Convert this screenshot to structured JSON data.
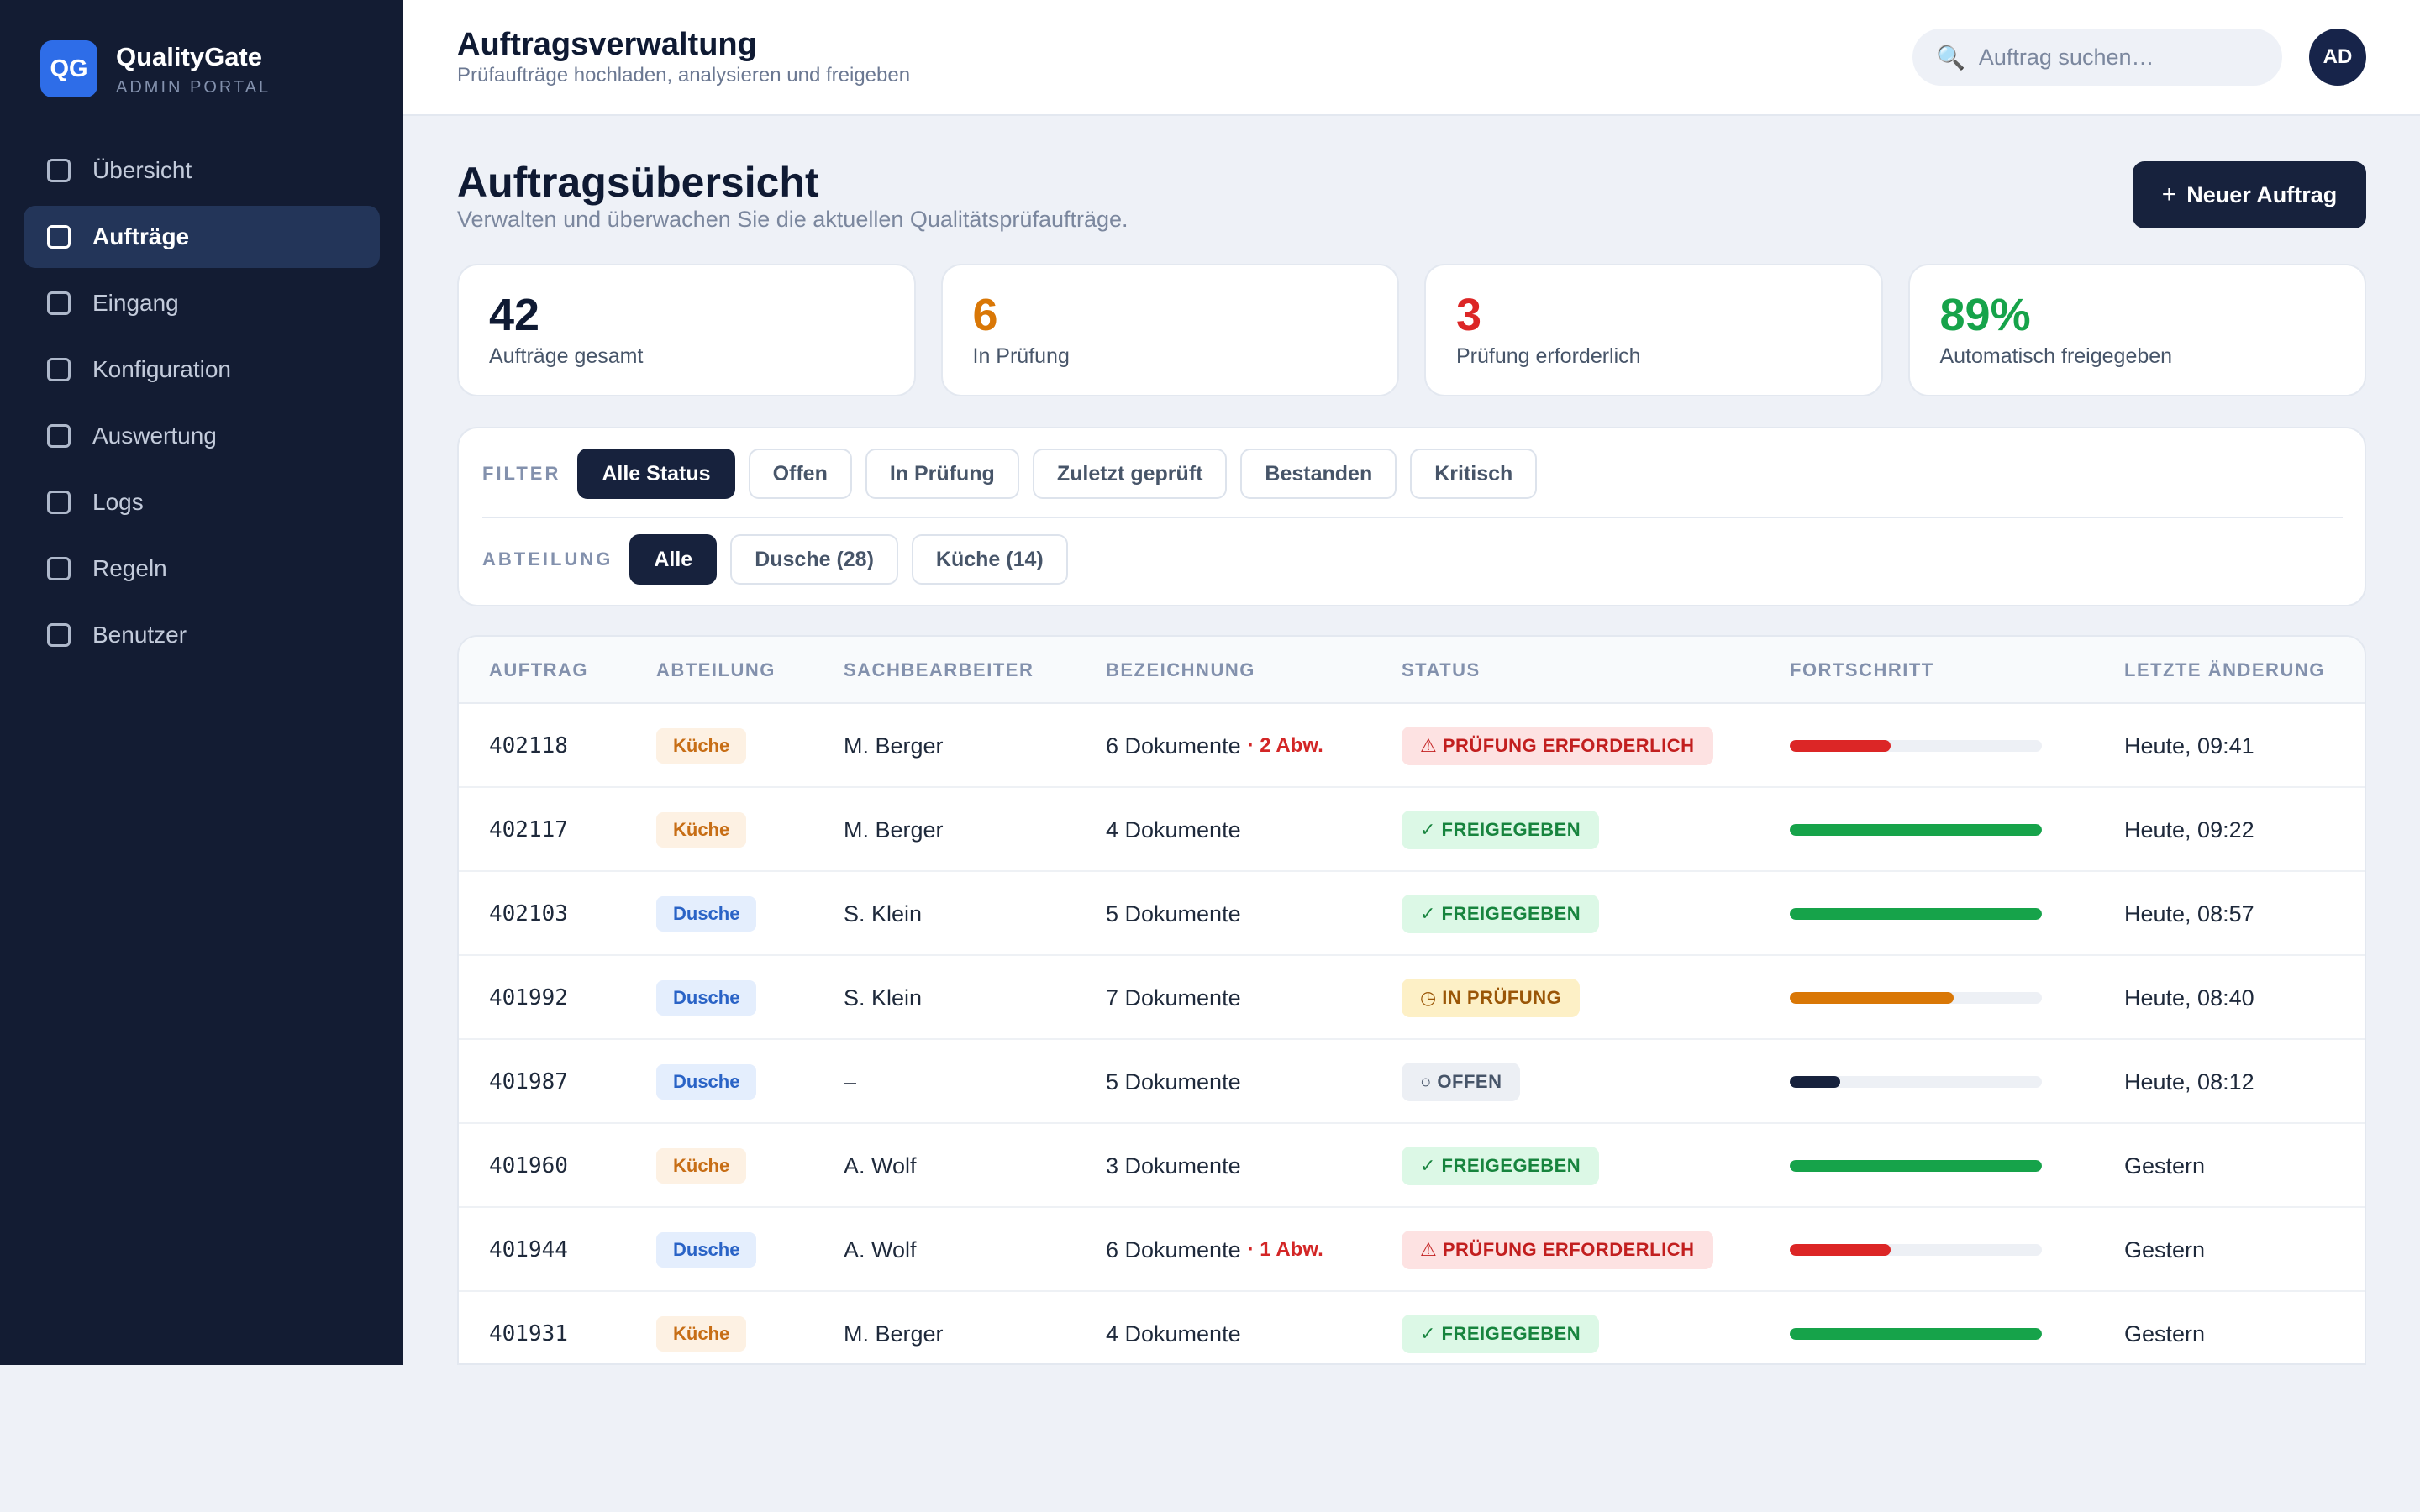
{
  "brand": {
    "logo": "QG",
    "name": "QualityGate",
    "subtitle": "ADMIN PORTAL"
  },
  "sidebar": {
    "items": [
      {
        "label": "Übersicht",
        "key": "uebersicht",
        "active": false
      },
      {
        "label": "Aufträge",
        "key": "auftraege",
        "active": true
      },
      {
        "label": "Eingang",
        "key": "eingang",
        "active": false
      },
      {
        "label": "Konfiguration",
        "key": "konfiguration",
        "active": false
      },
      {
        "label": "Auswertung",
        "key": "auswertung",
        "active": false
      },
      {
        "label": "Logs",
        "key": "logs",
        "active": false
      },
      {
        "label": "Regeln",
        "key": "regeln",
        "active": false
      },
      {
        "label": "Benutzer",
        "key": "benutzer",
        "active": false
      }
    ]
  },
  "header": {
    "title": "Auftragsverwaltung",
    "subtitle": "Prüfaufträge hochladen, analysieren und freigeben",
    "search_placeholder": "Auftrag suchen…",
    "search_icon": "🔍",
    "avatar": "AD"
  },
  "main": {
    "title": "Auftragsübersicht",
    "subtitle": "Verwalten und überwachen Sie die aktuellen Qualitätsprüfaufträge.",
    "new_button": {
      "icon": "+",
      "label": "Neuer Auftrag"
    }
  },
  "stats": [
    {
      "value": "42",
      "label": "Aufträge gesamt",
      "color": "#0f1a33"
    },
    {
      "value": "6",
      "label": "In Prüfung",
      "color": "#d97706"
    },
    {
      "value": "3",
      "label": "Prüfung erforderlich",
      "color": "#dc2626"
    },
    {
      "value": "89%",
      "label": "Automatisch freigegeben",
      "color": "#16a34a"
    }
  ],
  "filters": {
    "status_label": "FILTER",
    "status_options": [
      {
        "label": "Alle Status",
        "active": true
      },
      {
        "label": "Offen",
        "active": false
      },
      {
        "label": "In Prüfung",
        "active": false
      },
      {
        "label": "Zuletzt geprüft",
        "active": false
      },
      {
        "label": "Bestanden",
        "active": false
      },
      {
        "label": "Kritisch",
        "active": false
      }
    ],
    "dept_label": "ABTEILUNG",
    "dept_options": [
      {
        "label": "Alle",
        "active": true
      },
      {
        "label": "Dusche (28)",
        "active": false
      },
      {
        "label": "Küche (14)",
        "active": false
      }
    ]
  },
  "table": {
    "columns": [
      "AUFTRAG",
      "ABTEILUNG",
      "SACHBEARBEITER",
      "BEZEICHNUNG",
      "STATUS",
      "FORTSCHRITT",
      "LETZTE ÄNDERUNG"
    ],
    "rows": [
      {
        "auftrag": "402118",
        "abteilung": "Küche",
        "dept_class": "kueche",
        "bearbeiter": "M. Berger",
        "bezeichnung": "6 Dokumente",
        "abw": "· 2 Abw.",
        "status": "⚠ PRÜFUNG ERFORDERLICH",
        "status_class": "pruefung_erforderlich",
        "progress": 0.4,
        "progress_color": "#dc2626",
        "geaendert": "Heute, 09:41"
      },
      {
        "auftrag": "402117",
        "abteilung": "Küche",
        "dept_class": "kueche",
        "bearbeiter": "M. Berger",
        "bezeichnung": "4 Dokumente",
        "abw": "",
        "status": "✓ FREIGEGEBEN",
        "status_class": "freigegeben",
        "progress": 1.0,
        "progress_color": "#16a34a",
        "geaendert": "Heute, 09:22"
      },
      {
        "auftrag": "402103",
        "abteilung": "Dusche",
        "dept_class": "dusche",
        "bearbeiter": "S. Klein",
        "bezeichnung": "5 Dokumente",
        "abw": "",
        "status": "✓ FREIGEGEBEN",
        "status_class": "freigegeben",
        "progress": 1.0,
        "progress_color": "#16a34a",
        "geaendert": "Heute, 08:57"
      },
      {
        "auftrag": "401992",
        "abteilung": "Dusche",
        "dept_class": "dusche",
        "bearbeiter": "S. Klein",
        "bezeichnung": "7 Dokumente",
        "abw": "",
        "status": "◷ IN PRÜFUNG",
        "status_class": "in_pruefung",
        "progress": 0.65,
        "progress_color": "#d97706",
        "geaendert": "Heute, 08:40"
      },
      {
        "auftrag": "401987",
        "abteilung": "Dusche",
        "dept_class": "dusche",
        "bearbeiter": "–",
        "bezeichnung": "5 Dokumente",
        "abw": "",
        "status": "○ OFFEN",
        "status_class": "offen",
        "progress": 0.2,
        "progress_color": "#17223d",
        "geaendert": "Heute, 08:12"
      },
      {
        "auftrag": "401960",
        "abteilung": "Küche",
        "dept_class": "kueche",
        "bearbeiter": "A. Wolf",
        "bezeichnung": "3 Dokumente",
        "abw": "",
        "status": "✓ FREIGEGEBEN",
        "status_class": "freigegeben",
        "progress": 1.0,
        "progress_color": "#16a34a",
        "geaendert": "Gestern"
      },
      {
        "auftrag": "401944",
        "abteilung": "Dusche",
        "dept_class": "dusche",
        "bearbeiter": "A. Wolf",
        "bezeichnung": "6 Dokumente",
        "abw": "· 1 Abw.",
        "status": "⚠ PRÜFUNG ERFORDERLICH",
        "status_class": "pruefung_erforderlich",
        "progress": 0.4,
        "progress_color": "#dc2626",
        "geaendert": "Gestern"
      },
      {
        "auftrag": "401931",
        "abteilung": "Küche",
        "dept_class": "kueche",
        "bearbeiter": "M. Berger",
        "bezeichnung": "4 Dokumente",
        "abw": "",
        "status": "✓ FREIGEGEBEN",
        "status_class": "freigegeben",
        "progress": 1.0,
        "progress_color": "#16a34a",
        "geaendert": "Gestern"
      }
    ]
  }
}
